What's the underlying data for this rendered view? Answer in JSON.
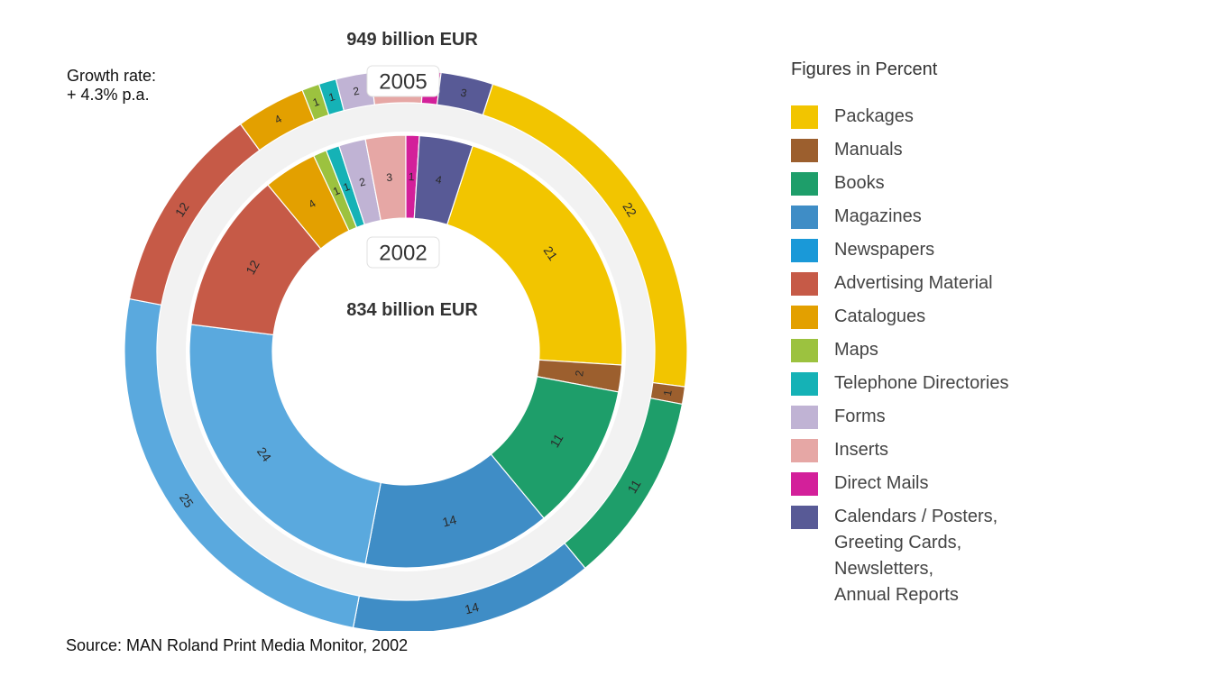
{
  "figure": {
    "growth_line1": "Growth rate:",
    "growth_line2": "+ 4.3% p.a.",
    "source": "Source: MAN Roland Print Media Monitor, 2002"
  },
  "legend": {
    "title": "Figures in Percent",
    "items": [
      {
        "label": "Packages",
        "color": "#f2c500"
      },
      {
        "label": "Manuals",
        "color": "#9c5f2e"
      },
      {
        "label": "Books",
        "color": "#1e9e6a"
      },
      {
        "label": "Magazines",
        "color": "#3f8dc6"
      },
      {
        "label": "Newspapers",
        "color": "#1a99d8"
      },
      {
        "label": "Advertising Material",
        "color": "#c65a47"
      },
      {
        "label": "Catalogues",
        "color": "#e3a000"
      },
      {
        "label": "Maps",
        "color": "#9cc23f"
      },
      {
        "label": "Telephone Directories",
        "color": "#15b2b6"
      },
      {
        "label": "Forms",
        "color": "#c0b3d4"
      },
      {
        "label": "Inserts",
        "color": "#e6a7a5"
      },
      {
        "label": "Direct Mails",
        "color": "#d3209a"
      },
      {
        "label": "Calendars / Posters,\nGreeting Cards,\nNewsletters,\nAnnual Reports",
        "color": "#585a96"
      }
    ]
  },
  "chart_data": {
    "type": "pie",
    "variant": "nested-donut",
    "unit": "percent",
    "categories": [
      "Packages",
      "Manuals",
      "Books",
      "Magazines",
      "Newspapers",
      "Advertising Material",
      "Catalogues",
      "Maps",
      "Telephone Directories",
      "Forms",
      "Inserts",
      "Direct Mails",
      "Calendars / Posters, Greeting Cards, Newsletters, Annual Reports"
    ],
    "colors": [
      "#f2c500",
      "#9c5f2e",
      "#1e9e6a",
      "#3f8dc6",
      "#5aa9de",
      "#c65a47",
      "#e3a000",
      "#9cc23f",
      "#15b2b6",
      "#c0b3d4",
      "#e6a7a5",
      "#d3209a",
      "#585a96"
    ],
    "series": [
      {
        "name": "2005",
        "total": "949 billion EUR",
        "values": [
          22,
          1,
          11,
          14,
          25,
          12,
          4,
          1,
          1,
          2,
          3,
          1,
          3
        ]
      },
      {
        "name": "2002",
        "total": "834 billion EUR",
        "values": [
          21,
          2,
          11,
          14,
          24,
          12,
          4,
          1,
          1,
          2,
          3,
          1,
          4
        ]
      }
    ]
  }
}
